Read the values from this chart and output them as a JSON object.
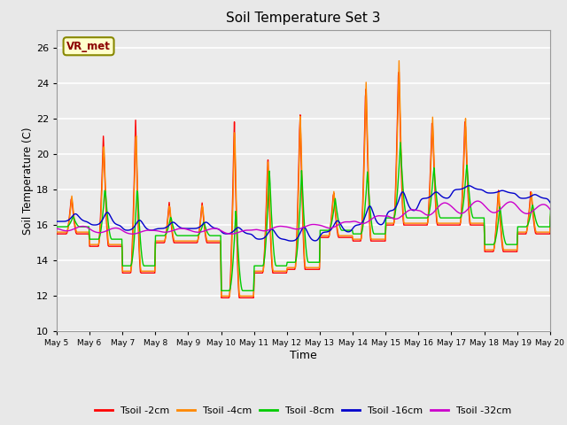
{
  "title": "Soil Temperature Set 3",
  "xlabel": "Time",
  "ylabel": "Soil Temperature (C)",
  "ylim": [
    10,
    27
  ],
  "yticks": [
    10,
    12,
    14,
    16,
    18,
    20,
    22,
    24,
    26
  ],
  "annotation_text": "VR_met",
  "series_colors": [
    "#ff0000",
    "#ff8800",
    "#00cc00",
    "#0000cc",
    "#cc00cc"
  ],
  "series_labels": [
    "Tsoil -2cm",
    "Tsoil -4cm",
    "Tsoil -8cm",
    "Tsoil -16cm",
    "Tsoil -32cm"
  ],
  "xtick_labels": [
    "May 5",
    "May 6",
    "May 7",
    "May 8",
    "May 9",
    "May 10",
    "May 11",
    "May 12",
    "May 13",
    "May 14",
    "May 15",
    "May 16",
    "May 17",
    "May 18",
    "May 19",
    "May 20"
  ],
  "background_color": "#e8e8e8",
  "plot_bg_color": "#ebebeb",
  "grid_color": "#ffffff"
}
